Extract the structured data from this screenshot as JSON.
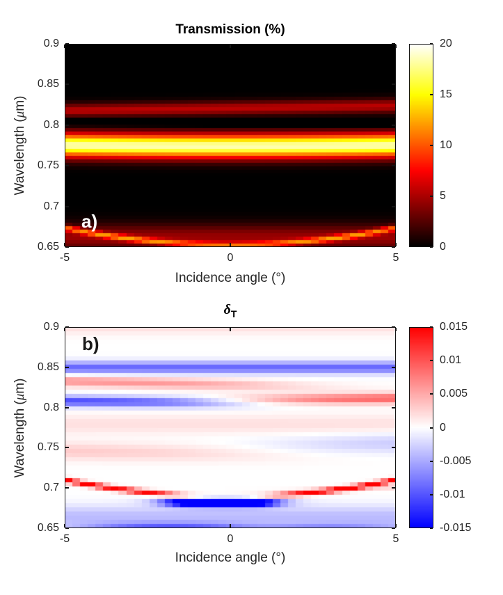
{
  "chart_data": [
    {
      "id": "a",
      "type": "heatmap",
      "title": "Transmission (%)",
      "panel_label": "a)",
      "xlabel": "Incidence angle (°)",
      "ylabel_parts": {
        "pre": "Wavelength (",
        "mu": "μ",
        "post": "m)"
      },
      "x_range": [
        -5,
        5
      ],
      "y_range": [
        0.65,
        0.9
      ],
      "x_ticks": {
        "values": [
          -5,
          0,
          5
        ],
        "labels": [
          "-5",
          "0",
          "5"
        ]
      },
      "y_ticks": {
        "values": [
          0.9,
          0.85,
          0.8,
          0.75,
          0.7,
          0.65
        ],
        "labels": [
          "0.9",
          "0.85",
          "0.8",
          "0.75",
          "0.7",
          "0.65"
        ]
      },
      "colorbar": {
        "colormap": "hot",
        "min": 0,
        "max": 20,
        "tick_values": [
          20,
          15,
          10,
          5,
          0
        ],
        "tick_labels": [
          "20",
          "15",
          "10",
          "5",
          "0"
        ]
      },
      "grid": {
        "cols": 43,
        "rows": 58
      },
      "features": [
        {
          "name": "main-transmission-band",
          "amp": 18.5,
          "c0": 0.774,
          "c1": 0,
          "c2": 5e-05,
          "sigma": 0.0145
        },
        {
          "name": "upper-side-band",
          "amp": 5.5,
          "c0": 0.821,
          "c1": 0.0006,
          "c2": 0,
          "sigma": 0.0085
        },
        {
          "name": "dark-notch",
          "amp": -3.5,
          "c0": 0.8035,
          "c1": -0.0003,
          "c2": 0,
          "sigma": 0.0045
        },
        {
          "name": "lower-glow",
          "amp": 4.5,
          "c0": 0.662,
          "c1": 0,
          "c2": 0,
          "sigma": 0.016
        },
        {
          "name": "lower-bright-streak",
          "amp": 8.0,
          "c0": 0.6525,
          "c1": 0,
          "c2": 0.00085,
          "sigma": 0.0035
        }
      ]
    },
    {
      "id": "b",
      "type": "heatmap",
      "title_parts": {
        "delta": "δ",
        "sub": "T"
      },
      "panel_label": "b)",
      "xlabel": "Incidence angle (°)",
      "ylabel_parts": {
        "pre": "Wavelength (",
        "mu": "μ",
        "post": "m)"
      },
      "x_range": [
        -5,
        5
      ],
      "y_range": [
        0.65,
        0.9
      ],
      "x_ticks": {
        "values": [
          -5,
          0,
          5
        ],
        "labels": [
          "-5",
          "0",
          "5"
        ]
      },
      "y_ticks": {
        "values": [
          0.9,
          0.85,
          0.8,
          0.75,
          0.7,
          0.65
        ],
        "labels": [
          "0.9",
          "0.85",
          "0.8",
          "0.75",
          "0.7",
          "0.65"
        ]
      },
      "colorbar": {
        "colormap": "bluewhitered",
        "min": -0.015,
        "max": 0.015,
        "tick_values": [
          0.015,
          0.01,
          0.005,
          0,
          -0.005,
          -0.01,
          -0.015
        ],
        "tick_labels": [
          "0.015",
          "0.01",
          "0.005",
          "0",
          "-0.005",
          "-0.01",
          "-0.015"
        ]
      },
      "grid": {
        "cols": 43,
        "rows": 48
      },
      "features": [
        {
          "name": "blue-band-0.85",
          "amp": -0.009,
          "c0": 0.8495,
          "c1": 0,
          "c2": 0,
          "sigma": 0.0075
        },
        {
          "name": "red-band-left-0.83",
          "amp": 0.0065,
          "c0": 0.828,
          "c1": -0.0009,
          "c2": 0,
          "sigma": 0.0065,
          "tmax": 1.0,
          "tsoft": 1.3
        },
        {
          "name": "blue-band-left-0.805",
          "amp": -0.011,
          "c0": 0.8055,
          "c1": -0.0004,
          "c2": 0,
          "sigma": 0.0065,
          "tmax": -0.3,
          "tsoft": 1.0
        },
        {
          "name": "red-band-right-0.81",
          "amp": 0.01,
          "c0": 0.809,
          "c1": 0.0004,
          "c2": 0,
          "sigma": 0.0065,
          "tmin": 1.0,
          "tsoft": 1.3
        },
        {
          "name": "faint-pink-top",
          "amp": 0.002,
          "c0": 0.902,
          "c1": 0,
          "c2": 0,
          "sigma": 0.011
        },
        {
          "name": "faint-pink-mid",
          "amp": 0.0018,
          "c0": 0.779,
          "c1": 0,
          "c2": 0,
          "sigma": 0.012
        },
        {
          "name": "pink-lower-left",
          "amp": 0.0032,
          "c0": 0.743,
          "c1": -0.0006,
          "c2": 0,
          "sigma": 0.011,
          "tmax": 0.5,
          "tsoft": 1.8
        },
        {
          "name": "light-blue-right-mid",
          "amp": -0.0035,
          "c0": 0.752,
          "c1": 0.0008,
          "c2": 0,
          "sigma": 0.013,
          "tmin": 2.2,
          "tsoft": 1.5
        },
        {
          "name": "light-blue-bottom",
          "amp": -0.004,
          "c0": 0.664,
          "c1": 0,
          "c2": 0,
          "sigma": 0.014
        },
        {
          "name": "red-parabola-left",
          "amp": 0.016,
          "c0": 0.6895,
          "c1": 0,
          "c2": 0.00082,
          "sigma": 0.0032,
          "tmax": -1.55,
          "tsoft": 0.35
        },
        {
          "name": "red-parabola-right",
          "amp": 0.016,
          "c0": 0.6895,
          "c1": 0,
          "c2": 0.00082,
          "sigma": 0.0032,
          "tmin": 1.35,
          "tsoft": 0.35
        },
        {
          "name": "deep-blue-blob-center",
          "amp": -0.026,
          "c0": 0.6815,
          "c1": 0,
          "c2": 0.0002,
          "sigma": 0.0048,
          "tmin": -1.85,
          "tmax": 1.3,
          "tsoft": 0.3
        },
        {
          "name": "blue-streak-bottom-left",
          "amp": -0.009,
          "c0": 0.6535,
          "c1": 0,
          "c2": 0,
          "sigma": 0.0038,
          "tmin": -3.9,
          "tmax": 0.1,
          "tsoft": 0.7
        },
        {
          "name": "blue-streak-bottom-right",
          "amp": -0.006,
          "c0": 0.652,
          "c1": 0.0003,
          "c2": 0,
          "sigma": 0.004,
          "tmin": 1.6,
          "tmax": 4.7,
          "tsoft": 0.8
        },
        {
          "name": "faint-pink-under-right-parabola",
          "amp": 0.0022,
          "c0": 0.6955,
          "c1": 0,
          "c2": 0.0002,
          "sigma": 0.003,
          "tmin": 1.8,
          "tsoft": 0.8
        }
      ]
    }
  ]
}
